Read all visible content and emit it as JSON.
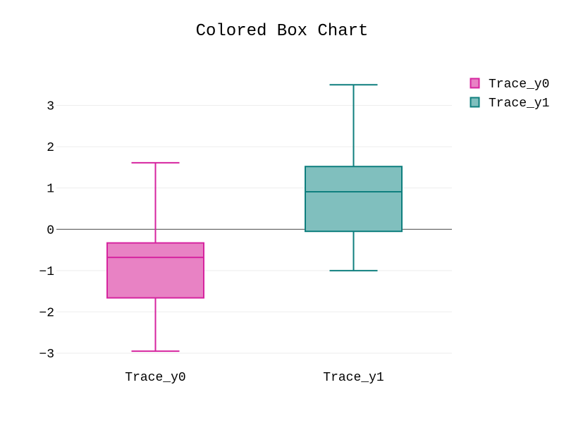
{
  "chart_data": {
    "type": "box",
    "title": "Colored Box Chart",
    "xlabel": "",
    "ylabel": "",
    "categories": [
      "Trace_y0",
      "Trace_y1"
    ],
    "ylim": [
      -3.1,
      3.8
    ],
    "yticks": [
      3,
      2,
      1,
      0,
      -1,
      -2,
      -3
    ],
    "ytick_labels": [
      "3",
      "2",
      "1",
      "0",
      "−1",
      "−2",
      "−3"
    ],
    "grid": true,
    "zero_line": true,
    "legend": {
      "position": "top-right",
      "entries": [
        "Trace_y0",
        "Trace_y1"
      ]
    },
    "series": [
      {
        "name": "Trace_y0",
        "min": -2.95,
        "q1": -1.66,
        "median": -0.68,
        "q3": -0.33,
        "max": 1.61,
        "fill_color": "#e882c4",
        "line_color": "#d6249f"
      },
      {
        "name": "Trace_y1",
        "min": -1.0,
        "q1": -0.05,
        "median": 0.91,
        "q3": 1.52,
        "max": 3.5,
        "fill_color": "#80bfbe",
        "line_color": "#0f7f7e"
      }
    ]
  }
}
